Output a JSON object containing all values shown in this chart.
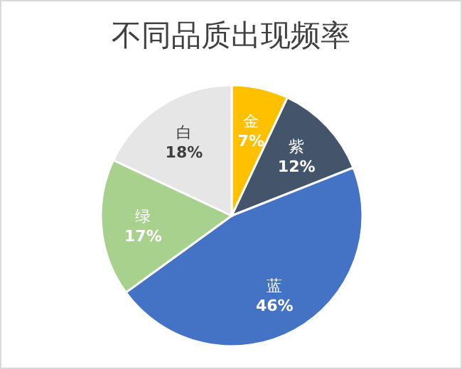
{
  "chart_data": {
    "type": "pie",
    "title": "不同品质出现频率",
    "categories": [
      "金",
      "紫",
      "蓝",
      "绿",
      "白"
    ],
    "values": [
      7,
      12,
      46,
      17,
      18
    ],
    "colors": [
      "#ffc000",
      "#44546a",
      "#4472c4",
      "#a9d18e",
      "#e7e6e6"
    ],
    "value_labels": [
      "7%",
      "12%",
      "46%",
      "17%",
      "18%"
    ]
  }
}
